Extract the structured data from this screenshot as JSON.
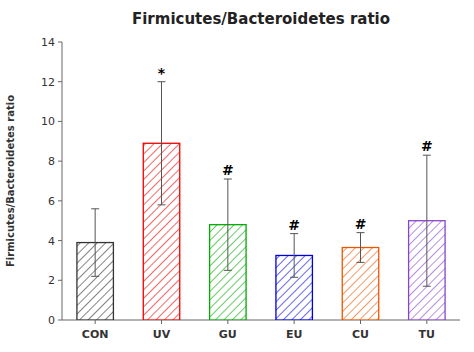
{
  "chart_data": {
    "type": "bar",
    "title": "Firmicutes/Bacteroidetes ratio",
    "ylabel": "Firmicutes/Bacteroidetes ratio",
    "categories": [
      "CON",
      "UV",
      "GU",
      "EU",
      "CU",
      "TU"
    ],
    "values": [
      3.9,
      8.9,
      4.8,
      3.25,
      3.65,
      5.0
    ],
    "errors": [
      1.7,
      3.1,
      2.3,
      1.1,
      0.75,
      3.3
    ],
    "colors": [
      "#333333",
      "#ee0000",
      "#00aa00",
      "#0000dd",
      "#ee5500",
      "#8844cc"
    ],
    "annotations": [
      null,
      "*",
      "#",
      "#",
      "#",
      "#"
    ],
    "ylim": [
      0,
      14
    ],
    "yticks": [
      0,
      2,
      4,
      6,
      8,
      10,
      12,
      14
    ],
    "grid": false
  }
}
